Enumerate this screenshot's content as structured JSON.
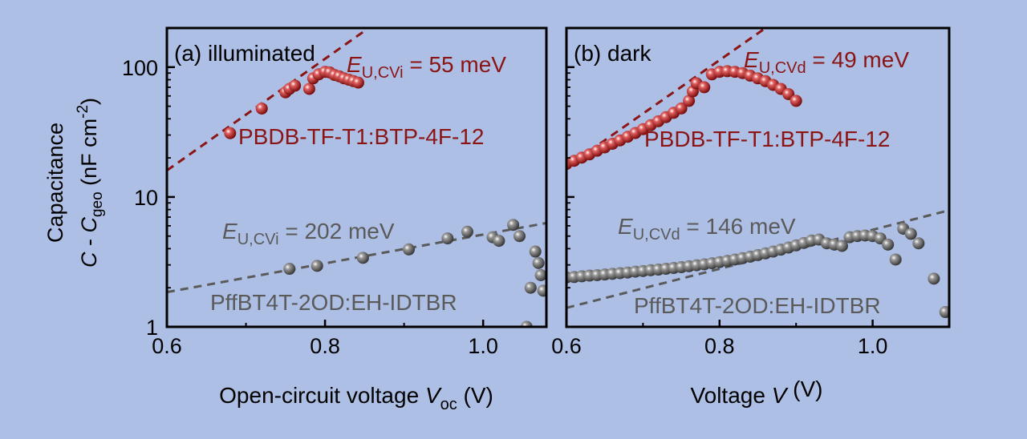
{
  "figure": {
    "ylabel_line1": "Capacitance",
    "ylabel_line2": {
      "var": "C",
      "mid": " - ",
      "var2": "C",
      "sub": "geo",
      "unit_pre": " (nF cm",
      "sup": "-2",
      "unit_post": ")"
    },
    "colors": {
      "background": "#aebfe5",
      "red": "#8b1414",
      "gray": "#5a5a5a"
    }
  },
  "chart_data": [
    {
      "type": "scatter",
      "panel_label": "(a) illuminated",
      "xlabel": {
        "text": "Open-circuit voltage ",
        "var": "V",
        "sub": "oc",
        "unit": " (V)"
      },
      "xlim": [
        0.6,
        1.08
      ],
      "ylim": [
        1,
        200
      ],
      "yscale": "log",
      "xticks": [
        "0.6",
        "0.8",
        "1.0"
      ],
      "yticks": [
        "1",
        "10",
        "100"
      ],
      "series": [
        {
          "name": "PBDB-TF-T1:BTP-4F-12",
          "color": "#8b1414",
          "points": [
            [
              0.68,
              31
            ],
            [
              0.72,
              48
            ],
            [
              0.75,
              64
            ],
            [
              0.755,
              68
            ],
            [
              0.762,
              72
            ],
            [
              0.78,
              68
            ],
            [
              0.785,
              82
            ],
            [
              0.792,
              88
            ],
            [
              0.8,
              92
            ],
            [
              0.806,
              91
            ],
            [
              0.812,
              87
            ],
            [
              0.818,
              85
            ],
            [
              0.824,
              82
            ],
            [
              0.83,
              80
            ],
            [
              0.836,
              78
            ],
            [
              0.842,
              76
            ]
          ],
          "fit": {
            "label_var": "E",
            "label_sub": "U,CVi",
            "label_value": " = 55 meV",
            "x": [
              0.6,
              0.85
            ],
            "y": [
              16,
              190
            ]
          }
        },
        {
          "name": "PffBT4T-2OD:EH-IDTBR",
          "color": "#5a5a5a",
          "points": [
            [
              0.755,
              2.8
            ],
            [
              0.79,
              2.95
            ],
            [
              0.848,
              3.4
            ],
            [
              0.906,
              3.95
            ],
            [
              0.955,
              4.8
            ],
            [
              0.98,
              5.4
            ],
            [
              1.012,
              4.9
            ],
            [
              1.02,
              4.6
            ],
            [
              1.038,
              6.1
            ],
            [
              1.046,
              5.0
            ],
            [
              1.055,
              1.0
            ],
            [
              1.06,
              2.0
            ],
            [
              1.066,
              3.8
            ],
            [
              1.07,
              3.1
            ],
            [
              1.073,
              2.5
            ],
            [
              1.076,
              1.9
            ]
          ],
          "fit": {
            "label_var": "E",
            "label_sub": "U,CVi",
            "label_value": " = 202 meV",
            "x": [
              0.6,
              1.08
            ],
            "y": [
              1.85,
              6.3
            ]
          }
        }
      ]
    },
    {
      "type": "scatter",
      "panel_label": "(b) dark",
      "xlabel": {
        "text": "Voltage ",
        "var": "V",
        "sub": "",
        "unit": " (V)"
      },
      "xlim": [
        0.6,
        1.1
      ],
      "ylim": [
        1,
        200
      ],
      "yscale": "log",
      "xticks": [
        "0.6",
        "0.8",
        "1.0"
      ],
      "yticks": [],
      "series": [
        {
          "name": "PBDB-TF-T1:BTP-4F-12",
          "color": "#8b1414",
          "points": [
            [
              0.6,
              18.0
            ],
            [
              0.61,
              19.0
            ],
            [
              0.62,
              20.1
            ],
            [
              0.63,
              21.3
            ],
            [
              0.64,
              22.7
            ],
            [
              0.65,
              24.1
            ],
            [
              0.66,
              25.7
            ],
            [
              0.67,
              27.3
            ],
            [
              0.68,
              29.1
            ],
            [
              0.69,
              31.1
            ],
            [
              0.7,
              33.3
            ],
            [
              0.71,
              35.7
            ],
            [
              0.72,
              38.3
            ],
            [
              0.73,
              41.2
            ],
            [
              0.74,
              44.5
            ],
            [
              0.75,
              48.1
            ],
            [
              0.76,
              55.0
            ],
            [
              0.765,
              65.0
            ],
            [
              0.77,
              75.0
            ],
            [
              0.78,
              70.0
            ],
            [
              0.79,
              88.0
            ],
            [
              0.8,
              92.0
            ],
            [
              0.81,
              93.0
            ],
            [
              0.82,
              92.0
            ],
            [
              0.83,
              90.0
            ],
            [
              0.84,
              86.0
            ],
            [
              0.85,
              82.0
            ],
            [
              0.86,
              78.0
            ],
            [
              0.87,
              73.0
            ],
            [
              0.88,
              68.0
            ],
            [
              0.89,
              62.0
            ],
            [
              0.9,
              55.0
            ]
          ],
          "fit": {
            "label_var": "E",
            "label_sub": "U,CVd",
            "label_value": " = 49 meV",
            "x": [
              0.6,
              0.86
            ],
            "y": [
              17,
              200
            ]
          }
        },
        {
          "name": "PffBT4T-2OD:EH-IDTBR",
          "color": "#5a5a5a",
          "points": [
            [
              0.6,
              2.4
            ],
            [
              0.61,
              2.42
            ],
            [
              0.62,
              2.45
            ],
            [
              0.63,
              2.48
            ],
            [
              0.64,
              2.5
            ],
            [
              0.65,
              2.53
            ],
            [
              0.66,
              2.56
            ],
            [
              0.67,
              2.59
            ],
            [
              0.68,
              2.62
            ],
            [
              0.69,
              2.66
            ],
            [
              0.7,
              2.69
            ],
            [
              0.71,
              2.73
            ],
            [
              0.72,
              2.76
            ],
            [
              0.73,
              2.8
            ],
            [
              0.74,
              2.84
            ],
            [
              0.75,
              2.88
            ],
            [
              0.76,
              2.93
            ],
            [
              0.77,
              2.98
            ],
            [
              0.78,
              3.03
            ],
            [
              0.79,
              3.09
            ],
            [
              0.8,
              3.15
            ],
            [
              0.81,
              3.22
            ],
            [
              0.82,
              3.3
            ],
            [
              0.83,
              3.38
            ],
            [
              0.84,
              3.47
            ],
            [
              0.85,
              3.57
            ],
            [
              0.86,
              3.68
            ],
            [
              0.87,
              3.8
            ],
            [
              0.88,
              3.93
            ],
            [
              0.89,
              4.08
            ],
            [
              0.9,
              4.24
            ],
            [
              0.91,
              4.42
            ],
            [
              0.92,
              4.62
            ],
            [
              0.93,
              4.7
            ],
            [
              0.94,
              4.4
            ],
            [
              0.95,
              4.3
            ],
            [
              0.96,
              4.2
            ],
            [
              0.97,
              4.9
            ],
            [
              0.98,
              5.0
            ],
            [
              0.99,
              5.05
            ],
            [
              1.0,
              5.0
            ],
            [
              1.01,
              4.8
            ],
            [
              1.02,
              4.3
            ],
            [
              1.03,
              3.3
            ],
            [
              1.04,
              5.7
            ],
            [
              1.05,
              5.2
            ],
            [
              1.06,
              4.4
            ],
            [
              1.08,
              2.35
            ],
            [
              1.095,
              1.3
            ]
          ],
          "fit": {
            "label_var": "E",
            "label_sub": "U,CVd",
            "label_value": " = 146 meV",
            "x": [
              0.6,
              1.1
            ],
            "y": [
              1.4,
              7.9
            ]
          }
        }
      ]
    }
  ]
}
